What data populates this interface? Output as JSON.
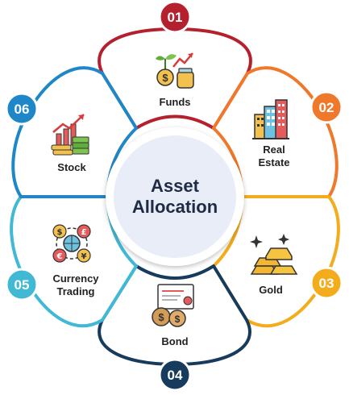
{
  "center": {
    "line1": "Asset",
    "line2": "Allocation"
  },
  "items": [
    {
      "number": "01",
      "label_lines": [
        "Funds"
      ],
      "color": "#b5202e",
      "icon": "funds-icon"
    },
    {
      "number": "02",
      "label_lines": [
        "Real",
        "Estate"
      ],
      "color": "#f0782a",
      "icon": "building-icon"
    },
    {
      "number": "03",
      "label_lines": [
        "Gold"
      ],
      "color": "#f2ac1c",
      "icon": "gold-bars-icon"
    },
    {
      "number": "04",
      "label_lines": [
        "Bond"
      ],
      "color": "#173b5c",
      "icon": "bond-certificate-icon"
    },
    {
      "number": "05",
      "label_lines": [
        "Currency",
        "Trading"
      ],
      "color": "#41b9d4",
      "icon": "currency-exchange-icon"
    },
    {
      "number": "06",
      "label_lines": [
        "Stock"
      ],
      "color": "#1f86c7",
      "icon": "stock-chart-icon"
    }
  ]
}
